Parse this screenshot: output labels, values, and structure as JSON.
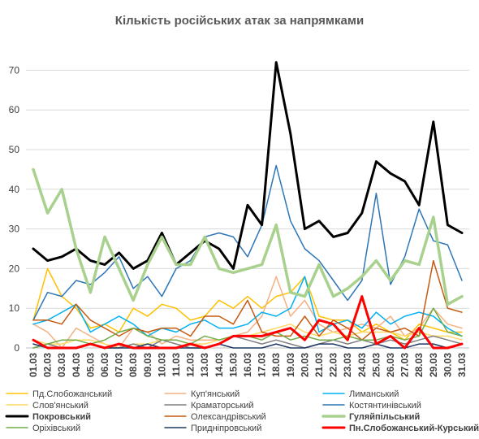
{
  "chart_data": {
    "type": "line",
    "title": "Кількість російських атак за напрямками",
    "xlabel": "",
    "ylabel": "",
    "ylim": [
      0,
      75
    ],
    "yticks": [
      0,
      10,
      20,
      30,
      40,
      50,
      60,
      70
    ],
    "grid": "horizontal",
    "legend_position": "bottom",
    "categories": [
      "01.03",
      "02.03",
      "03.03",
      "04.03",
      "05.03",
      "06.03",
      "07.03",
      "08.03",
      "09.03",
      "10.03",
      "11.03",
      "12.03",
      "13.03",
      "14.03",
      "15.03",
      "16.03",
      "17.03",
      "18.03",
      "19.03",
      "20.03",
      "21.03",
      "22.03",
      "23.03",
      "24.03",
      "25.03",
      "26.03",
      "27.03",
      "28.03",
      "29.03",
      "30.03",
      "31.03"
    ],
    "series": [
      {
        "name": "Пд.Слобожанський",
        "color": "#FFC000",
        "width": 1.5,
        "values": [
          7,
          20,
          13,
          10,
          5,
          6,
          4,
          10,
          8,
          11,
          10,
          7,
          8,
          12,
          10,
          13,
          10,
          13,
          14,
          18,
          8,
          7,
          7,
          4,
          6,
          4,
          2,
          6,
          5,
          4,
          4
        ]
      },
      {
        "name": "Куп'янський",
        "color": "#F4B183",
        "width": 1.5,
        "values": [
          6,
          4,
          0,
          5,
          3,
          1,
          0,
          5,
          4,
          1,
          3,
          2,
          2,
          2,
          3,
          4,
          8,
          18,
          8,
          12,
          6,
          4,
          5,
          6,
          5,
          8,
          3,
          5,
          10,
          6,
          5
        ]
      },
      {
        "name": "Лиманський",
        "color": "#00B0F0",
        "width": 1.5,
        "values": [
          6,
          7,
          9,
          11,
          4,
          6,
          8,
          6,
          3,
          5,
          4,
          6,
          7,
          5,
          5,
          6,
          9,
          8,
          10,
          18,
          4,
          6,
          7,
          5,
          9,
          6,
          8,
          9,
          8,
          5,
          3
        ]
      },
      {
        "name": "Слов'янський",
        "color": "#FFD966",
        "width": 1.5,
        "values": [
          2,
          1,
          1,
          2,
          2,
          1,
          0,
          1,
          1,
          2,
          2,
          1,
          1,
          2,
          3,
          3,
          4,
          5,
          6,
          4,
          3,
          4,
          3,
          4,
          4,
          4,
          3,
          4,
          3,
          3,
          2
        ]
      },
      {
        "name": "Краматорський",
        "color": "#808080",
        "width": 1.5,
        "values": [
          0,
          1,
          0,
          0,
          1,
          0,
          0,
          1,
          0,
          2,
          1,
          0,
          0,
          1,
          3,
          2,
          1,
          2,
          1,
          0,
          1,
          2,
          1,
          2,
          1,
          2,
          1,
          2,
          3,
          2,
          1
        ]
      },
      {
        "name": "Костянтинівський",
        "color": "#2E75B6",
        "width": 1.5,
        "values": [
          7,
          14,
          13,
          17,
          16,
          19,
          23,
          15,
          18,
          13,
          20,
          22,
          28,
          29,
          28,
          23,
          31,
          46,
          32,
          25,
          22,
          17,
          12,
          17,
          39,
          16,
          23,
          35,
          27,
          26,
          17
        ]
      },
      {
        "name": "Покровський",
        "color": "#000000",
        "width": 3,
        "values": [
          25,
          22,
          23,
          25,
          22,
          21,
          24,
          20,
          22,
          29,
          21,
          24,
          27,
          25,
          20,
          36,
          31,
          72,
          54,
          30,
          32,
          28,
          29,
          34,
          47,
          44,
          42,
          36,
          57,
          31,
          29
        ]
      },
      {
        "name": "Олександрівський",
        "color": "#C55A11",
        "width": 1.5,
        "values": [
          7,
          7,
          6,
          11,
          7,
          5,
          3,
          5,
          4,
          5,
          5,
          3,
          8,
          8,
          6,
          12,
          4,
          3,
          3,
          8,
          3,
          7,
          5,
          2,
          5,
          4,
          5,
          3,
          22,
          10,
          9
        ]
      },
      {
        "name": "Гуляйпільський",
        "color": "#A9D18E",
        "width": 3.5,
        "values": [
          45,
          34,
          40,
          25,
          14,
          28,
          20,
          12,
          21,
          28,
          21,
          21,
          28,
          20,
          19,
          20,
          21,
          31,
          14,
          13,
          21,
          13,
          15,
          18,
          22,
          17,
          22,
          21,
          33,
          11,
          13
        ]
      },
      {
        "name": "Оріхівський",
        "color": "#70AD47",
        "width": 1.5,
        "values": [
          0,
          1,
          2,
          2,
          1,
          2,
          4,
          5,
          3,
          2,
          2,
          1,
          3,
          2,
          3,
          3,
          2,
          4,
          2,
          3,
          2,
          2,
          3,
          2,
          2,
          3,
          2,
          3,
          10,
          4,
          3
        ]
      },
      {
        "name": "Придніпровський",
        "color": "#1F3864",
        "width": 1.5,
        "values": [
          1,
          0,
          0,
          0,
          1,
          0,
          0,
          0,
          1,
          0,
          0,
          0,
          0,
          1,
          0,
          0,
          0,
          1,
          0,
          0,
          1,
          1,
          0,
          0,
          1,
          0,
          0,
          1,
          1,
          0,
          1
        ]
      },
      {
        "name": "Пн.Слобожанський-Курський",
        "color": "#FF0000",
        "width": 3,
        "values": [
          2,
          0,
          0,
          0,
          1,
          0,
          1,
          0,
          0,
          0,
          0,
          1,
          0,
          1,
          3,
          3,
          3,
          4,
          5,
          2,
          7,
          6,
          2,
          13,
          1,
          3,
          0,
          5,
          0,
          0,
          1
        ]
      }
    ]
  }
}
